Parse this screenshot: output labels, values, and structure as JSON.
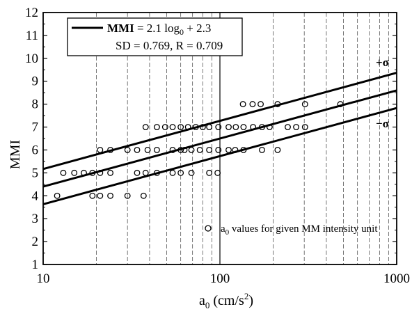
{
  "chart_data": {
    "type": "scatter",
    "x_scale": "log",
    "xlim": [
      10,
      1000
    ],
    "ylim": [
      1,
      12
    ],
    "x_ticks": [
      10,
      100,
      1000
    ],
    "x_tick_labels": [
      "10",
      "100",
      "1000"
    ],
    "y_ticks": [
      1,
      2,
      3,
      4,
      5,
      6,
      7,
      8,
      9,
      10,
      11,
      12
    ],
    "y_tick_labels": [
      "1",
      "2",
      "3",
      "4",
      "5",
      "6",
      "7",
      "8",
      "9",
      "10",
      "11",
      "12"
    ],
    "xlabel": {
      "base": "a",
      "sub": "0",
      "units_prefix": " (cm/s",
      "sup": "2",
      "units_suffix": ")"
    },
    "ylabel": "MMI",
    "grid": {
      "x_major": true,
      "x_minor": true,
      "y": false
    },
    "legend_top": {
      "placement": "top-left",
      "label": "MMI",
      "eq_prefix": " = 2.1 log",
      "eq_sub": "0",
      "eq_suffix": " + 2.3",
      "line2": "SD = 0.769, R = 0.709"
    },
    "legend_bottom": {
      "placement": "bottom-right",
      "base": "a",
      "sub": "0",
      "text": " values for given MM intensity unit"
    },
    "fit": {
      "slope": 2.1,
      "intercept": 2.3,
      "sd": 0.769,
      "r": 0.709
    },
    "band_labels": {
      "upper": "+σ",
      "lower": "−σ"
    },
    "points": [
      {
        "x": 12,
        "y": 4
      },
      {
        "x": 19,
        "y": 4
      },
      {
        "x": 21,
        "y": 4
      },
      {
        "x": 24,
        "y": 4
      },
      {
        "x": 30,
        "y": 4
      },
      {
        "x": 37,
        "y": 4
      },
      {
        "x": 13,
        "y": 5
      },
      {
        "x": 15,
        "y": 5
      },
      {
        "x": 17,
        "y": 5
      },
      {
        "x": 19,
        "y": 5
      },
      {
        "x": 21,
        "y": 5
      },
      {
        "x": 24,
        "y": 5
      },
      {
        "x": 34,
        "y": 5
      },
      {
        "x": 38,
        "y": 5
      },
      {
        "x": 44,
        "y": 5
      },
      {
        "x": 54,
        "y": 5
      },
      {
        "x": 60,
        "y": 5
      },
      {
        "x": 69,
        "y": 5
      },
      {
        "x": 87,
        "y": 5
      },
      {
        "x": 97,
        "y": 5
      },
      {
        "x": 21,
        "y": 6
      },
      {
        "x": 24,
        "y": 6
      },
      {
        "x": 30,
        "y": 6
      },
      {
        "x": 34,
        "y": 6
      },
      {
        "x": 39,
        "y": 6
      },
      {
        "x": 44,
        "y": 6
      },
      {
        "x": 54,
        "y": 6
      },
      {
        "x": 60,
        "y": 6
      },
      {
        "x": 63,
        "y": 6
      },
      {
        "x": 69,
        "y": 6
      },
      {
        "x": 77,
        "y": 6
      },
      {
        "x": 87,
        "y": 6
      },
      {
        "x": 98,
        "y": 6
      },
      {
        "x": 112,
        "y": 6
      },
      {
        "x": 122,
        "y": 6
      },
      {
        "x": 136,
        "y": 6
      },
      {
        "x": 173,
        "y": 6
      },
      {
        "x": 212,
        "y": 6
      },
      {
        "x": 38,
        "y": 7
      },
      {
        "x": 44,
        "y": 7
      },
      {
        "x": 49,
        "y": 7
      },
      {
        "x": 54,
        "y": 7
      },
      {
        "x": 60,
        "y": 7
      },
      {
        "x": 66,
        "y": 7
      },
      {
        "x": 73,
        "y": 7
      },
      {
        "x": 80,
        "y": 7
      },
      {
        "x": 87,
        "y": 7
      },
      {
        "x": 98,
        "y": 7
      },
      {
        "x": 112,
        "y": 7
      },
      {
        "x": 123,
        "y": 7
      },
      {
        "x": 136,
        "y": 7
      },
      {
        "x": 154,
        "y": 7
      },
      {
        "x": 173,
        "y": 7
      },
      {
        "x": 191,
        "y": 7
      },
      {
        "x": 242,
        "y": 7
      },
      {
        "x": 270,
        "y": 7
      },
      {
        "x": 303,
        "y": 7
      },
      {
        "x": 135,
        "y": 8
      },
      {
        "x": 153,
        "y": 8
      },
      {
        "x": 170,
        "y": 8
      },
      {
        "x": 212,
        "y": 8
      },
      {
        "x": 303,
        "y": 8
      },
      {
        "x": 480,
        "y": 8
      }
    ]
  }
}
